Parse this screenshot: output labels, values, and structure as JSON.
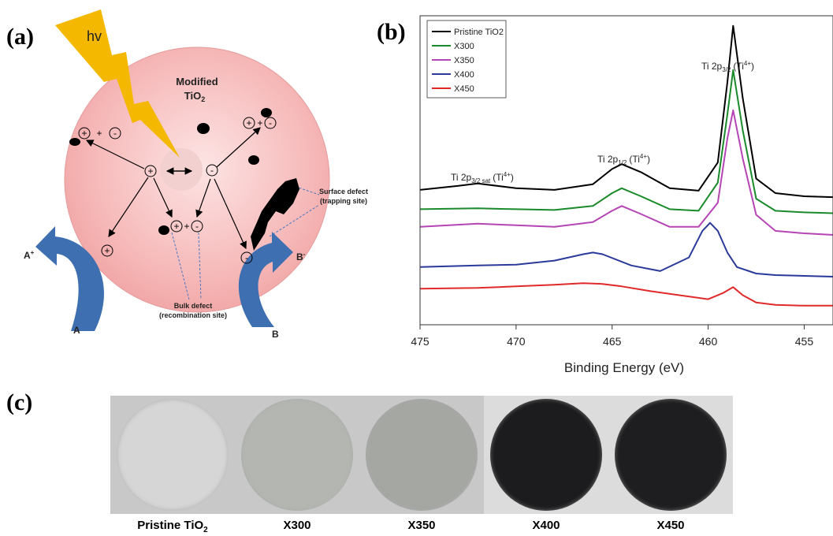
{
  "panel_a": {
    "label": "(a)",
    "light": "hv",
    "particle_title_line1": "Modified",
    "particle_title_line2": "TiO",
    "particle_title_sub": "2",
    "surface_defect_line1": "Surface defect",
    "surface_defect_line2": "(trapping site)",
    "bulk_defect_line1": "Bulk defect",
    "bulk_defect_line2": "(recombination site)",
    "a_plus": "A",
    "a_plus_sup": "+",
    "b_minus": "B",
    "b_minus_sup": "-",
    "a": "A",
    "b": "B",
    "hole": "+",
    "electron": "-",
    "colors": {
      "particle": "#f4a8a8",
      "bolt": "#f5b800",
      "arrow": "#3e6fb0",
      "defect": "#000000"
    }
  },
  "panel_b": {
    "label": "(b)",
    "xlabel": "Binding Energy (eV)",
    "annotations": {
      "sat_main": "Ti 2p",
      "sat_sub": "3/2 sat",
      "sat_tail": "(Ti",
      "half_main": "Ti 2p",
      "half_sub": "1/2",
      "half_tail": "(Ti",
      "three_main": "Ti 2p",
      "three_sub": "3/2",
      "three_tail": "(Ti",
      "ion_sup": "4+",
      "close": ")"
    }
  },
  "chart_data": {
    "type": "line",
    "xlabel": "Binding Energy (eV)",
    "ylabel": "",
    "xlim": [
      475,
      453.5
    ],
    "x_ticks": [
      475,
      470,
      465,
      460,
      455
    ],
    "x_reversed": true,
    "grid": false,
    "legend_position": "top-left",
    "series": [
      {
        "name": "Pristine TiO2",
        "color": "#000000",
        "x": [
          475,
          473,
          472,
          470,
          468,
          466,
          465,
          464.5,
          463.5,
          462,
          460.5,
          459.5,
          459,
          458.7,
          458.2,
          457.5,
          456.5,
          455,
          453.5
        ],
        "y": [
          1.56,
          1.61,
          1.64,
          1.58,
          1.56,
          1.63,
          1.82,
          1.88,
          1.78,
          1.58,
          1.55,
          1.9,
          2.9,
          3.6,
          2.7,
          1.7,
          1.52,
          1.48,
          1.47
        ]
      },
      {
        "name": "X300",
        "color": "#1a8a2a",
        "x": [
          475,
          472,
          470,
          468,
          466,
          465,
          464.5,
          463.5,
          462,
          460.5,
          459.5,
          459,
          458.7,
          458.2,
          457.5,
          456.5,
          455,
          453.5
        ],
        "y": [
          1.32,
          1.33,
          1.32,
          1.31,
          1.36,
          1.52,
          1.58,
          1.48,
          1.32,
          1.3,
          1.65,
          2.5,
          3.05,
          2.3,
          1.45,
          1.3,
          1.28,
          1.27
        ]
      },
      {
        "name": "X350",
        "color": "#b545b5",
        "x": [
          475,
          472,
          470,
          468,
          466,
          465,
          464.5,
          463.5,
          462,
          460.5,
          459.5,
          459,
          458.7,
          458.2,
          457.5,
          456.5,
          455,
          453.5
        ],
        "y": [
          1.1,
          1.14,
          1.12,
          1.1,
          1.16,
          1.3,
          1.36,
          1.26,
          1.1,
          1.1,
          1.4,
          2.2,
          2.55,
          1.95,
          1.25,
          1.05,
          1.02,
          1.0
        ]
      },
      {
        "name": "X400",
        "color": "#2a3a9a",
        "x": [
          475,
          472,
          470,
          468,
          466.5,
          466,
          465.5,
          464,
          462.5,
          461,
          460.3,
          459.9,
          459.5,
          459,
          458.5,
          457.5,
          456.5,
          455,
          453.5
        ],
        "y": [
          0.6,
          0.62,
          0.63,
          0.68,
          0.76,
          0.78,
          0.76,
          0.62,
          0.55,
          0.72,
          1.05,
          1.15,
          1.05,
          0.78,
          0.6,
          0.52,
          0.5,
          0.49,
          0.48
        ]
      },
      {
        "name": "X450",
        "color": "#e02a2a",
        "x": [
          475,
          472,
          470,
          468,
          466.5,
          465.5,
          464.5,
          463,
          461.5,
          460,
          459.2,
          458.7,
          458.2,
          457.5,
          456.5,
          455,
          453.5
        ],
        "y": [
          0.33,
          0.34,
          0.36,
          0.38,
          0.4,
          0.39,
          0.36,
          0.3,
          0.25,
          0.2,
          0.28,
          0.35,
          0.25,
          0.16,
          0.13,
          0.12,
          0.12
        ]
      }
    ]
  },
  "panel_c": {
    "label": "(c)",
    "samples": [
      {
        "name": "Pristine TiO",
        "sub": "2",
        "color": "#d6d6d6"
      },
      {
        "name": "X300",
        "sub": "",
        "color": "#b4b7b1"
      },
      {
        "name": "X350",
        "sub": "",
        "color": "#a5a7a3"
      },
      {
        "name": "X400",
        "sub": "",
        "color": "#1c1c1e"
      },
      {
        "name": "X450",
        "sub": "",
        "color": "#1e1e20"
      }
    ]
  }
}
